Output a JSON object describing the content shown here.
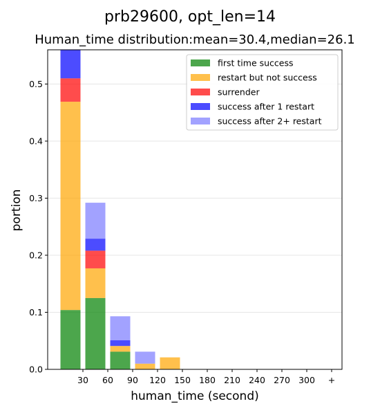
{
  "chart_data": {
    "type": "bar",
    "suptitle": "prb29600, opt_len=14",
    "title": "Human_time distribution:mean=30.4,median=26.1",
    "xlabel": "human_time (second)",
    "ylabel": "portion",
    "categories": [
      "30",
      "60",
      "90",
      "120",
      "150",
      "180",
      "210",
      "240",
      "270",
      "300",
      "+"
    ],
    "ylim": [
      0,
      0.56
    ],
    "yticks": [
      "0.0",
      "0.1",
      "0.2",
      "0.3",
      "0.4",
      "0.5"
    ],
    "stacked": true,
    "grid": true,
    "legend_position": "top-right",
    "series": [
      {
        "name": "first time success",
        "color": "#008000",
        "values": [
          0.104,
          0.125,
          0.031,
          0,
          0,
          0,
          0,
          0,
          0,
          0,
          0
        ]
      },
      {
        "name": "restart but not success",
        "color": "#FFA500",
        "values": [
          0.365,
          0.052,
          0.01,
          0.01,
          0.021,
          0,
          0,
          0,
          0,
          0,
          0
        ]
      },
      {
        "name": "surrender",
        "color": "#FF0000",
        "values": [
          0.041,
          0.031,
          0,
          0,
          0,
          0,
          0,
          0,
          0,
          0,
          0
        ]
      },
      {
        "name": "success after 1 restart",
        "color": "#0000FF",
        "values": [
          0.052,
          0.021,
          0.01,
          0,
          0,
          0,
          0,
          0,
          0,
          0,
          0
        ]
      },
      {
        "name": "success after 2+ restart",
        "color": "#7B7BFF",
        "values": [
          0,
          0.063,
          0.042,
          0.021,
          0,
          0,
          0,
          0,
          0,
          0,
          0
        ]
      }
    ]
  }
}
